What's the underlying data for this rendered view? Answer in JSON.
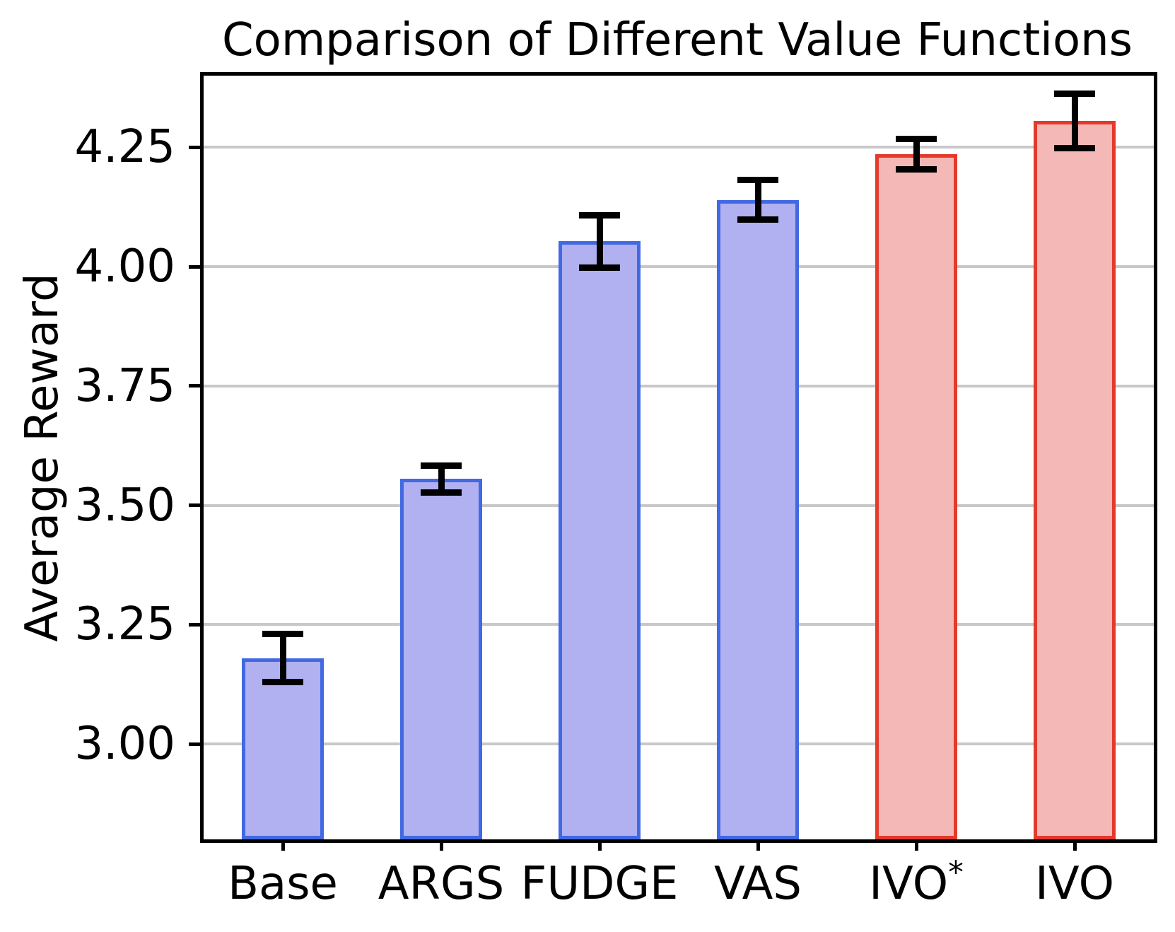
{
  "chart_data": {
    "type": "bar",
    "title": "Comparison of Different Value Functions",
    "ylabel": "Average Reward",
    "xlabel": "",
    "categories": [
      "Base",
      "ARGS",
      "FUDGE",
      "VAS",
      "IVO*",
      "IVO"
    ],
    "values": [
      3.18,
      3.555,
      4.053,
      4.14,
      4.235,
      4.305
    ],
    "errors": [
      0.05,
      0.028,
      0.055,
      0.042,
      0.032,
      0.057
    ],
    "bar_color_keys": [
      "blue",
      "blue",
      "blue",
      "blue",
      "red",
      "red"
    ],
    "palette": {
      "blue": {
        "fill": "#b1b0f0",
        "edge": "#4169e1"
      },
      "red": {
        "fill": "#f4b9b6",
        "edge": "#e5392b"
      }
    },
    "ylim": [
      2.8,
      4.4
    ],
    "yticks": [
      3.0,
      3.25,
      3.5,
      3.75,
      4.0,
      4.25
    ],
    "ytick_decimals": 2,
    "grid": true,
    "grid_color": "#c8c8c8",
    "axis_color": "#000000",
    "error_bar_color": "#000000"
  }
}
